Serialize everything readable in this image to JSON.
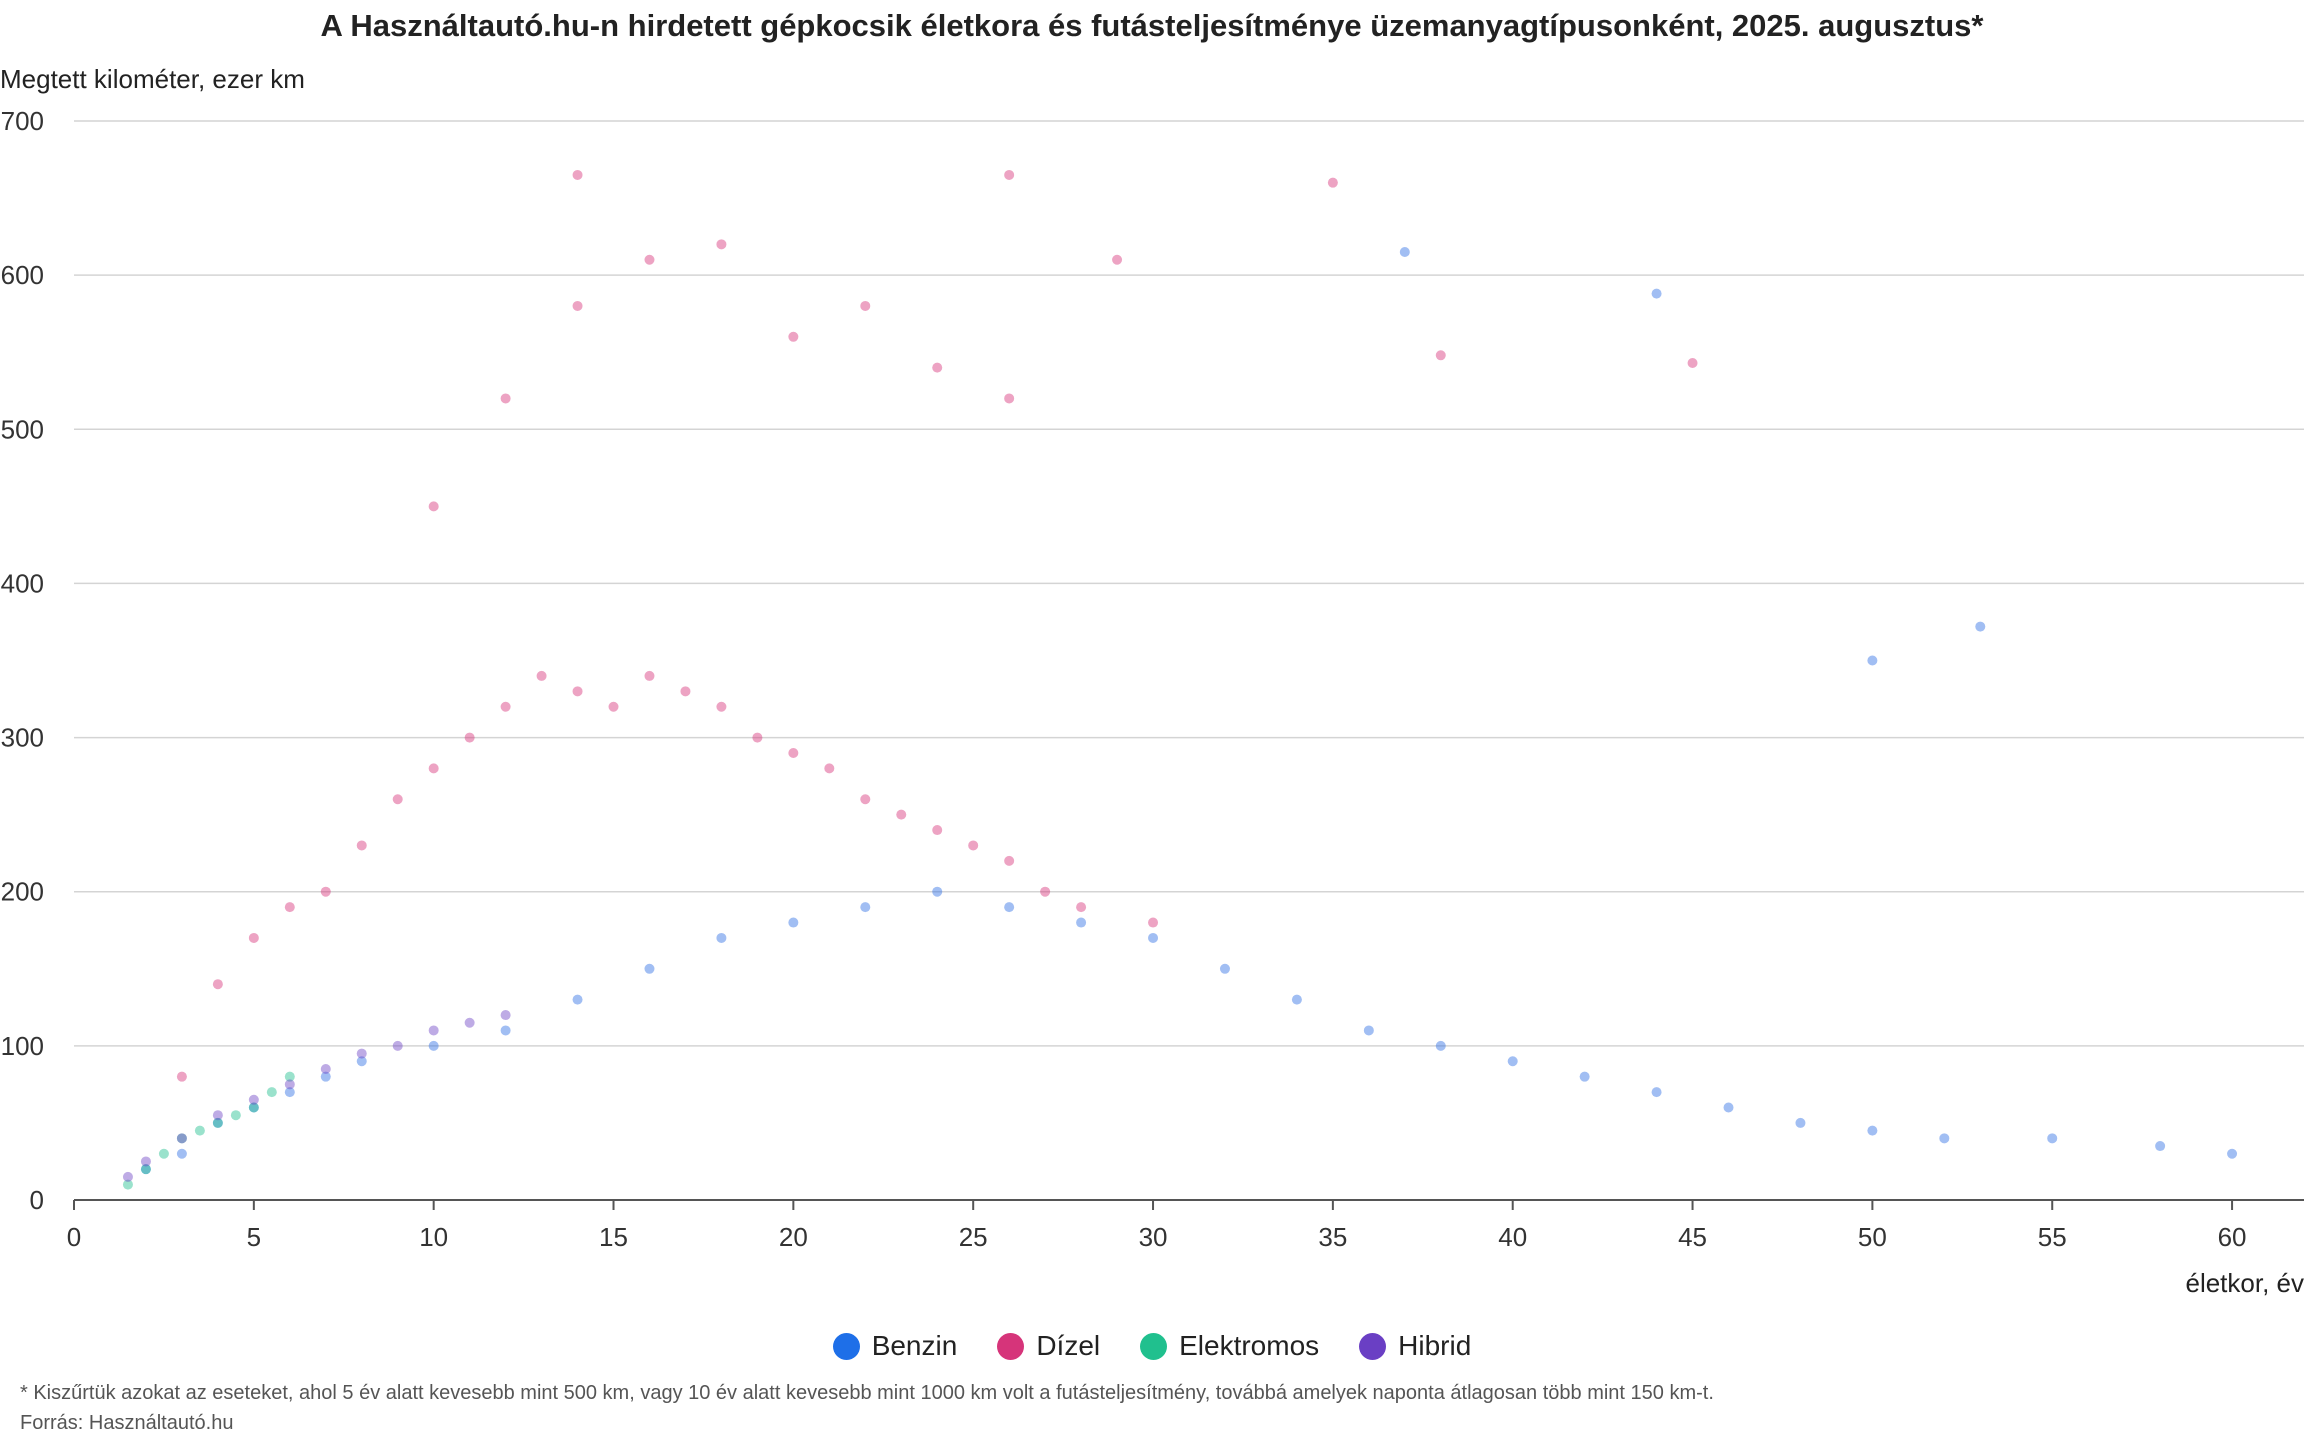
{
  "chart_data": {
    "type": "scatter",
    "title": "A Használtautó.hu-n hirdetett gépkocsik életkora és futásteljesítménye üzemanyagtípusonként, 2025. augusztus*",
    "ylabel": "Megtett kilométer, ezer km",
    "xlabel": "életkor, év",
    "xlim": [
      0,
      62
    ],
    "ylim": [
      0,
      700
    ],
    "x_ticks": [
      0,
      5,
      10,
      15,
      20,
      25,
      30,
      35,
      40,
      45,
      50,
      55,
      60
    ],
    "y_ticks": [
      0,
      100,
      200,
      300,
      400,
      500,
      600,
      700
    ],
    "grid": "horizontal",
    "legend_position": "bottom",
    "series": [
      {
        "name": "Dízel",
        "color": "#d6347a",
        "points": [
          [
            3,
            80
          ],
          [
            4,
            140
          ],
          [
            5,
            170
          ],
          [
            6,
            190
          ],
          [
            7,
            200
          ],
          [
            8,
            230
          ],
          [
            9,
            260
          ],
          [
            10,
            280
          ],
          [
            11,
            300
          ],
          [
            12,
            320
          ],
          [
            13,
            340
          ],
          [
            14,
            330
          ],
          [
            15,
            320
          ],
          [
            16,
            340
          ],
          [
            17,
            330
          ],
          [
            18,
            320
          ],
          [
            19,
            300
          ],
          [
            20,
            290
          ],
          [
            21,
            280
          ],
          [
            22,
            260
          ],
          [
            23,
            250
          ],
          [
            24,
            240
          ],
          [
            25,
            230
          ],
          [
            26,
            220
          ],
          [
            27,
            200
          ],
          [
            28,
            190
          ],
          [
            30,
            180
          ],
          [
            10,
            450
          ],
          [
            12,
            520
          ],
          [
            14,
            580
          ],
          [
            16,
            610
          ],
          [
            18,
            620
          ],
          [
            20,
            560
          ],
          [
            22,
            580
          ],
          [
            24,
            540
          ],
          [
            26,
            520
          ],
          [
            29,
            610
          ],
          [
            35,
            660
          ],
          [
            14,
            665
          ],
          [
            26,
            665
          ],
          [
            45,
            543
          ],
          [
            38,
            548
          ]
        ]
      },
      {
        "name": "Benzin",
        "color": "#2f6fe4",
        "points": [
          [
            2,
            20
          ],
          [
            3,
            30
          ],
          [
            4,
            50
          ],
          [
            5,
            60
          ],
          [
            6,
            70
          ],
          [
            7,
            80
          ],
          [
            8,
            90
          ],
          [
            10,
            100
          ],
          [
            12,
            110
          ],
          [
            14,
            130
          ],
          [
            16,
            150
          ],
          [
            18,
            170
          ],
          [
            20,
            180
          ],
          [
            22,
            190
          ],
          [
            24,
            200
          ],
          [
            26,
            190
          ],
          [
            28,
            180
          ],
          [
            30,
            170
          ],
          [
            32,
            150
          ],
          [
            34,
            130
          ],
          [
            36,
            110
          ],
          [
            38,
            100
          ],
          [
            40,
            90
          ],
          [
            42,
            80
          ],
          [
            44,
            70
          ],
          [
            46,
            60
          ],
          [
            48,
            50
          ],
          [
            50,
            45
          ],
          [
            52,
            40
          ],
          [
            55,
            40
          ],
          [
            58,
            35
          ],
          [
            60,
            30
          ],
          [
            37,
            615
          ],
          [
            44,
            588
          ],
          [
            53,
            372
          ],
          [
            50,
            350
          ]
        ]
      },
      {
        "name": "Elektromos",
        "color": "#1fbf8f",
        "points": [
          [
            1.5,
            10
          ],
          [
            2,
            20
          ],
          [
            2.5,
            30
          ],
          [
            3,
            40
          ],
          [
            3.5,
            45
          ],
          [
            4,
            50
          ],
          [
            4.5,
            55
          ],
          [
            5,
            60
          ],
          [
            5.5,
            70
          ],
          [
            6,
            80
          ]
        ]
      },
      {
        "name": "Hibrid",
        "color": "#6f45c6",
        "points": [
          [
            1.5,
            15
          ],
          [
            2,
            25
          ],
          [
            3,
            40
          ],
          [
            4,
            55
          ],
          [
            5,
            65
          ],
          [
            6,
            75
          ],
          [
            7,
            85
          ],
          [
            8,
            95
          ],
          [
            9,
            100
          ],
          [
            10,
            110
          ],
          [
            11,
            115
          ],
          [
            12,
            120
          ]
        ]
      }
    ]
  },
  "legend": [
    {
      "label": "Benzin",
      "color": "#1e6fe8"
    },
    {
      "label": "Dízel",
      "color": "#d6347a"
    },
    {
      "label": "Elektromos",
      "color": "#20c08e"
    },
    {
      "label": "Hibrid",
      "color": "#6a3fc4"
    }
  ],
  "footer": {
    "note": "* Kiszűrtük azokat az eseteket, ahol 5 év alatt kevesebb mint 500 km, vagy 10 év alatt kevesebb mint 1000 km volt a futásteljesítmény, továbbá amelyek naponta átlagosan több mint 150 km-t.",
    "source": "Forrás: Használtautó.hu"
  }
}
